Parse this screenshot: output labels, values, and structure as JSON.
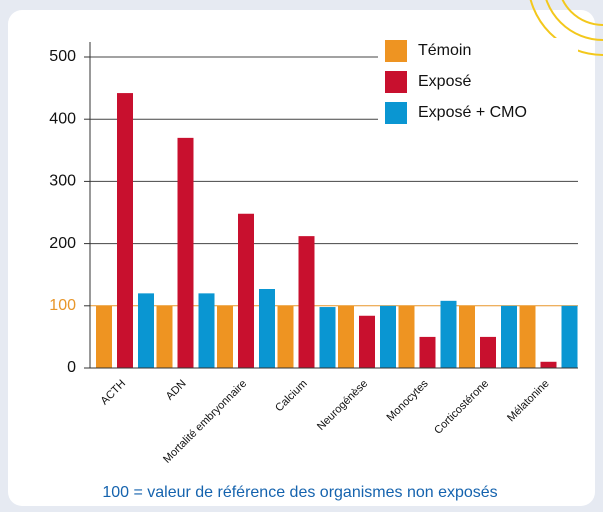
{
  "chart_data": {
    "type": "bar",
    "categories": [
      "ACTH",
      "ADN",
      "Mortalité embryonnaire",
      "Calcium",
      "Neurogénèse",
      "Monocytes",
      "Corticostérone",
      "Mélatonine"
    ],
    "series": [
      {
        "name": "Témoin",
        "color": "#ee9422",
        "values": [
          100,
          100,
          100,
          100,
          100,
          100,
          100,
          100
        ]
      },
      {
        "name": "Exposé",
        "color": "#c8102e",
        "values": [
          442,
          370,
          248,
          212,
          84,
          50,
          50,
          10
        ]
      },
      {
        "name": "Exposé + CMO",
        "color": "#0a96d2",
        "values": [
          120,
          120,
          127,
          98,
          100,
          108,
          100,
          100
        ]
      }
    ],
    "ylim": [
      0,
      500
    ],
    "yticks": [
      0,
      100,
      200,
      300,
      400,
      500
    ],
    "grid": true,
    "reference": {
      "value": 100,
      "color": "#e8962a"
    },
    "legend": "top-right",
    "note": "100 = valeur de référence des organismes non exposés"
  }
}
